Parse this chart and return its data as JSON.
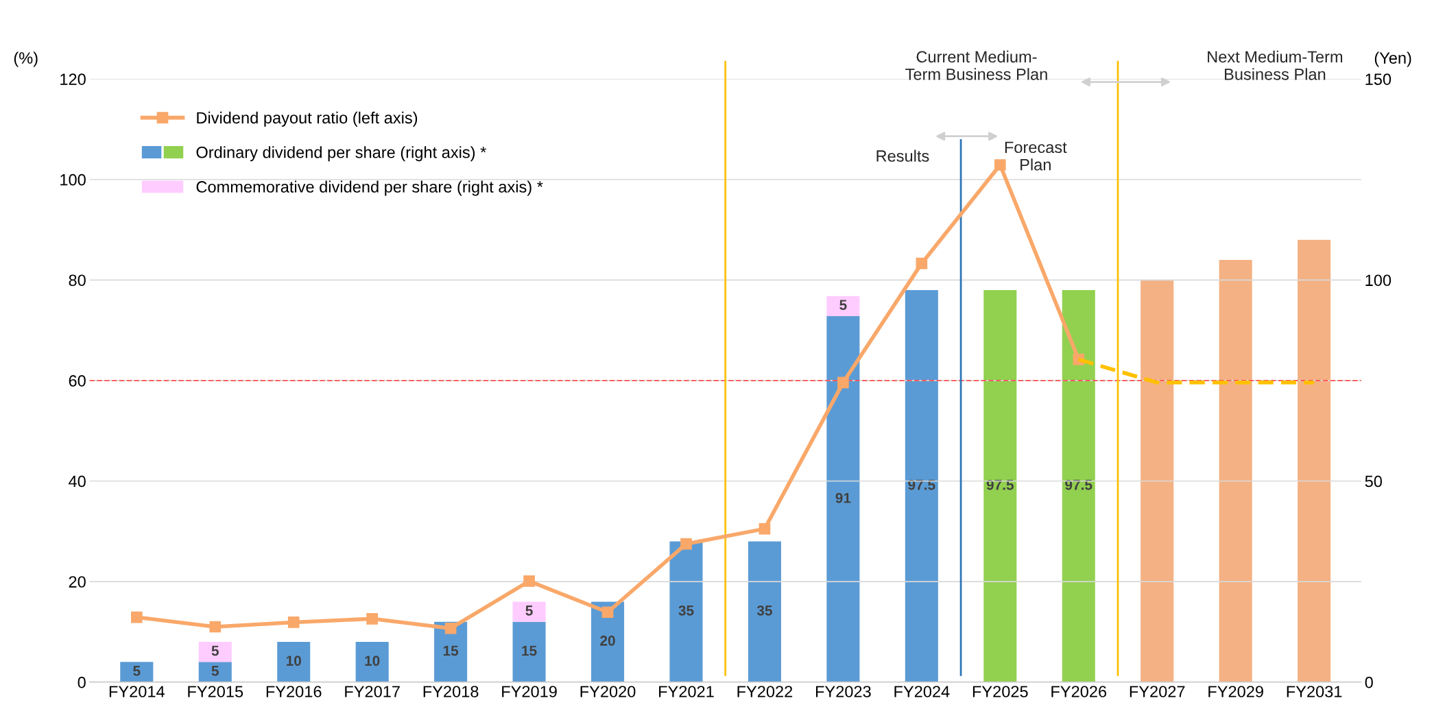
{
  "chart_data": {
    "type": "bar",
    "stacked": true,
    "categories": [
      "FY2014",
      "FY2015",
      "FY2016",
      "FY2017",
      "FY2018",
      "FY2019",
      "FY2020",
      "FY2021",
      "FY2022",
      "FY2023",
      "FY2024",
      "FY2025",
      "FY2026",
      "FY2027",
      "FY2029",
      "FY2031"
    ],
    "series": [
      {
        "name": "Ordinary dividend per share (right axis) *",
        "axis": "y2",
        "color": "#5b9bd5",
        "colors": [
          "#5b9bd5",
          "#5b9bd5",
          "#5b9bd5",
          "#5b9bd5",
          "#5b9bd5",
          "#5b9bd5",
          "#5b9bd5",
          "#5b9bd5",
          "#5b9bd5",
          "#5b9bd5",
          "#5b9bd5",
          "#92d050",
          "#92d050",
          "#f4b183",
          "#f4b183",
          "#f4b183"
        ],
        "values": [
          5,
          5,
          10,
          10,
          15,
          15,
          20,
          35,
          35,
          91,
          97.5,
          97.5,
          97.5,
          100,
          105,
          110
        ],
        "value_labels": [
          "5",
          "5",
          "10",
          "10",
          "15",
          "15",
          "20",
          "35",
          "35",
          "91",
          "97.5",
          "97.5",
          "97.5",
          null,
          null,
          null
        ]
      },
      {
        "name": "Commemorative dividend per share (right axis) *",
        "axis": "y2",
        "color": "#ffccff",
        "values": [
          null,
          5,
          null,
          null,
          null,
          5,
          null,
          null,
          null,
          5,
          null,
          null,
          null,
          null,
          null,
          null
        ],
        "value_labels": [
          null,
          "5",
          null,
          null,
          null,
          "5",
          null,
          null,
          null,
          "5",
          null,
          null,
          null,
          null,
          null,
          null
        ]
      },
      {
        "name": "Dividend payout ratio (left axis)",
        "type": "line",
        "axis": "y",
        "color": "#f9a86a",
        "marker": "square",
        "line_style": "solid",
        "values": [
          12.9,
          11.0,
          11.9,
          12.6,
          10.7,
          20.1,
          13.9,
          27.5,
          30.5,
          59.6,
          83.3,
          102.9,
          64.2,
          null,
          null,
          null
        ]
      },
      {
        "type": "line",
        "axis": "y",
        "color": "#ffc000",
        "marker": "none",
        "line_style": "dashed",
        "values": [
          null,
          null,
          null,
          null,
          null,
          null,
          null,
          null,
          null,
          null,
          null,
          null,
          64.2,
          59.6,
          59.6,
          59.6
        ]
      }
    ],
    "ylabel": "(%)",
    "y2label": "(Yen)",
    "ylim": [
      0,
      120
    ],
    "yticks": [
      0,
      20,
      40,
      60,
      80,
      100,
      120
    ],
    "y2lim": [
      0,
      150
    ],
    "y2ticks": [
      0,
      50,
      100,
      150
    ],
    "grid": "y",
    "legend": "top left",
    "ref_lines": [
      {
        "axis": "y",
        "value": 60,
        "color": "#ff5050",
        "line_style": "dashed"
      }
    ],
    "annotations": [
      "Current Medium-\nTerm Business Plan",
      "Next Medium-Term\nBusiness Plan",
      "Results",
      "Forecast\nPlan"
    ]
  }
}
